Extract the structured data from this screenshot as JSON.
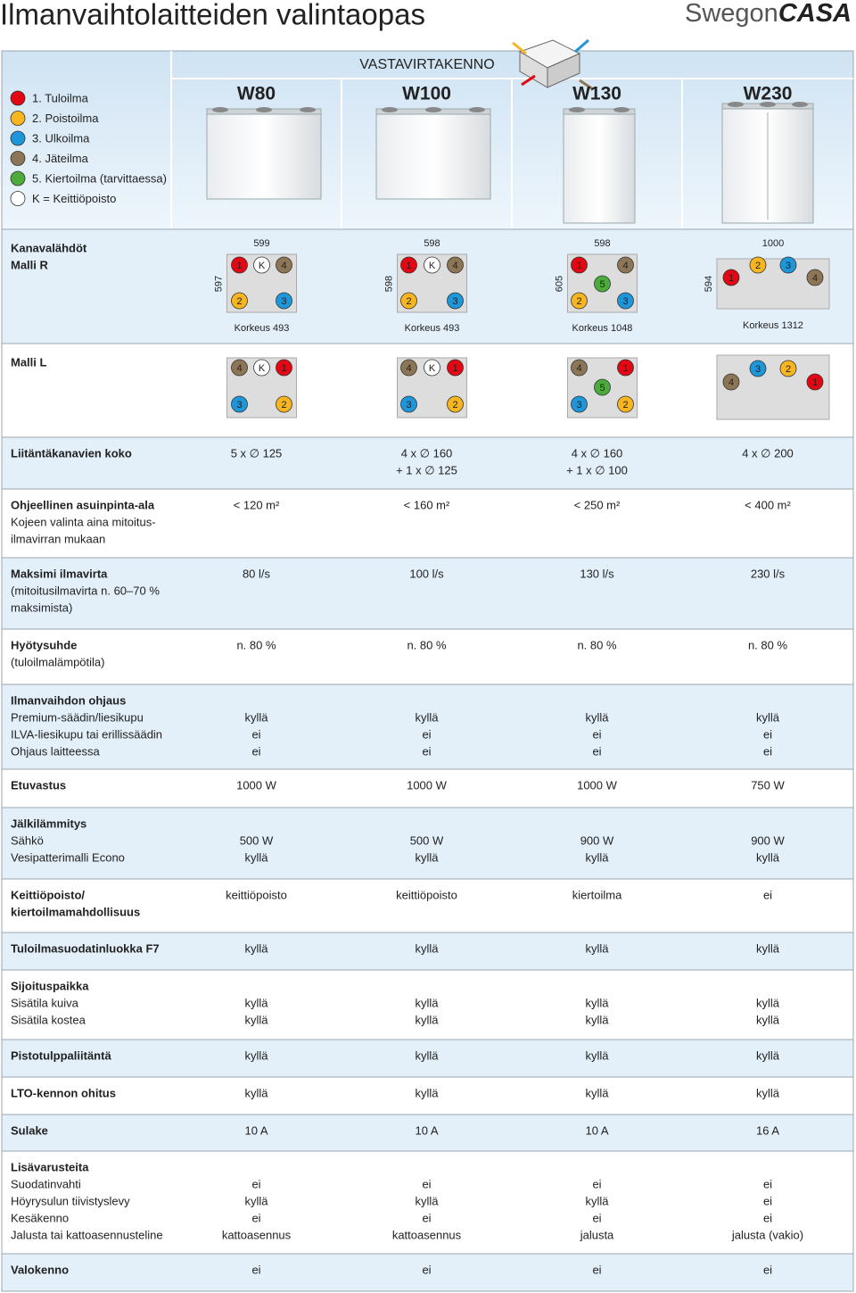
{
  "header": {
    "title": "Ilmanvaihtolaitteiden valintaopas",
    "brand": [
      "Swegon",
      "CASA"
    ]
  },
  "table": {
    "group": "VASTAVIRTAKENNO",
    "legend": [
      {
        "label": "1. Tuloilma",
        "color": "#e30613"
      },
      {
        "label": "2. Poistoilma",
        "color": "#f7b520"
      },
      {
        "label": "3. Ulkoilma",
        "color": "#1d97d9"
      },
      {
        "label": "4. Jäteilma",
        "color": "#8c7656"
      },
      {
        "label": "5. Kiertoilma (tarvittaessa)",
        "color": "#4cab3a"
      },
      {
        "label": "K = Keittiöpoisto",
        "color": "#ffffff"
      }
    ],
    "models": [
      "W80",
      "W100",
      "W130",
      "W230"
    ],
    "outlets": {
      "title": "Kanavalähdöt",
      "R": {
        "label": "Malli R",
        "models": [
          {
            "width": "599",
            "height": "597",
            "note": "Korkeus 493",
            "ports": [
              "1",
              "K",
              "4",
              "2",
              "3"
            ]
          },
          {
            "width": "598",
            "height": "598",
            "note": "Korkeus 493",
            "ports": [
              "1",
              "K",
              "4",
              "2",
              "3"
            ]
          },
          {
            "width": "598",
            "height": "605",
            "note": "Korkeus 1048",
            "ports": [
              "1",
              "4",
              "5",
              "2",
              "3"
            ]
          },
          {
            "width": "1000",
            "height": "594",
            "note": "Korkeus 1312",
            "ports": [
              "1",
              "2",
              "3",
              "4"
            ]
          }
        ]
      },
      "L": {
        "label": "Malli L",
        "models": [
          {
            "ports": [
              "4",
              "K",
              "1",
              "3",
              "2"
            ]
          },
          {
            "ports": [
              "4",
              "K",
              "1",
              "3",
              "2"
            ]
          },
          {
            "ports": [
              "4",
              "1",
              "5",
              "3",
              "2"
            ]
          },
          {
            "ports": [
              "4",
              "3",
              "2",
              "1"
            ]
          }
        ]
      }
    },
    "rows": [
      {
        "title": [
          "Liitäntäkanavien koko"
        ],
        "values": [
          [
            "5 x ∅ 125"
          ],
          [
            "4 x ∅ 160",
            "+ 1 x ∅ 125"
          ],
          [
            "4 x ∅ 160",
            "+ 1 x ∅ 100"
          ],
          [
            "4 x ∅ 200"
          ]
        ]
      },
      {
        "title": [
          "Ohjeellinen asuinpinta-ala"
        ],
        "notes": [
          "Kojeen valinta aina mitoitus-",
          "ilmavirran mukaan"
        ],
        "values": [
          "< 120 m²",
          "< 160 m²",
          "< 250 m²",
          "< 400 m²"
        ]
      },
      {
        "title": [
          "Maksimi ilmavirta"
        ],
        "notes": [
          "(mitoitusilmavirta n. 60–70 %",
          "maksimista)"
        ],
        "values": [
          "80 l/s",
          "100 l/s",
          "130 l/s",
          "230 l/s"
        ]
      },
      {
        "title": [
          "Hyötysuhde"
        ],
        "notes": [
          "(tuloilmalämpötila)"
        ],
        "values": [
          "n. 80 %",
          "n. 80 %",
          "n. 80 %",
          "n. 80 %"
        ]
      },
      {
        "title": [
          "Ilmanvaihdon ohjaus"
        ],
        "items": [
          {
            "label": "Premium-säädin/liesikupu",
            "values": [
              "kyllä",
              "kyllä",
              "kyllä",
              "kyllä"
            ]
          },
          {
            "label": "ILVA-liesikupu tai erillissäädin",
            "values": [
              "ei",
              "ei",
              "ei",
              "ei"
            ]
          },
          {
            "label": "Ohjaus laitteessa",
            "values": [
              "ei",
              "ei",
              "ei",
              "ei"
            ]
          }
        ]
      },
      {
        "title": [
          "Etuvastus"
        ],
        "values": [
          "1000 W",
          "1000 W",
          "1000 W",
          "750 W"
        ]
      },
      {
        "title": [
          "Jälkilämmitys"
        ],
        "items": [
          {
            "label": "Sähkö",
            "values": [
              "500 W",
              "500 W",
              "900 W",
              "900 W"
            ]
          },
          {
            "label": "Vesipatterimalli Econo",
            "values": [
              "kyllä",
              "kyllä",
              "kyllä",
              "kyllä"
            ]
          }
        ]
      },
      {
        "title": [
          "Keittiöpoisto/",
          "kiertoilmamahdollisuus"
        ],
        "values": [
          "keittiöpoisto",
          "keittiöpoisto",
          "kiertoilma",
          "ei"
        ]
      },
      {
        "title": [
          "Tuloilmasuodatinluokka F7"
        ],
        "values": [
          "kyllä",
          "kyllä",
          "kyllä",
          "kyllä"
        ]
      },
      {
        "title": [
          "Sijoituspaikka"
        ],
        "items": [
          {
            "label": "Sisätila kuiva",
            "values": [
              "kyllä",
              "kyllä",
              "kyllä",
              "kyllä"
            ]
          },
          {
            "label": "Sisätila kostea",
            "values": [
              "kyllä",
              "kyllä",
              "kyllä",
              "kyllä"
            ]
          }
        ]
      },
      {
        "title": [
          "Pistotulppaliitäntä"
        ],
        "values": [
          "kyllä",
          "kyllä",
          "kyllä",
          "kyllä"
        ]
      },
      {
        "title": [
          "LTO-kennon ohitus"
        ],
        "values": [
          "kyllä",
          "kyllä",
          "kyllä",
          "kyllä"
        ]
      },
      {
        "title": [
          "Sulake"
        ],
        "values": [
          "10 A",
          "10 A",
          "10 A",
          "16 A"
        ]
      },
      {
        "title": [
          "Lisävarusteita"
        ],
        "items": [
          {
            "label": "Suodatinvahti",
            "values": [
              "ei",
              "ei",
              "ei",
              "ei"
            ]
          },
          {
            "label": "Höyrysulun tiivistyslevy",
            "values": [
              "kyllä",
              "kyllä",
              "kyllä",
              "ei"
            ]
          },
          {
            "label": "Kesäkenno",
            "values": [
              "ei",
              "ei",
              "ei",
              "ei"
            ]
          },
          {
            "label": "Jalusta tai kattoasennusteline",
            "values": [
              "kattoasennus",
              "kattoasennus",
              "jalusta",
              "jalusta (vakio)"
            ]
          }
        ]
      },
      {
        "title": [
          "Valokenno"
        ],
        "values": [
          "ei",
          "ei",
          "ei",
          "ei"
        ]
      }
    ]
  }
}
